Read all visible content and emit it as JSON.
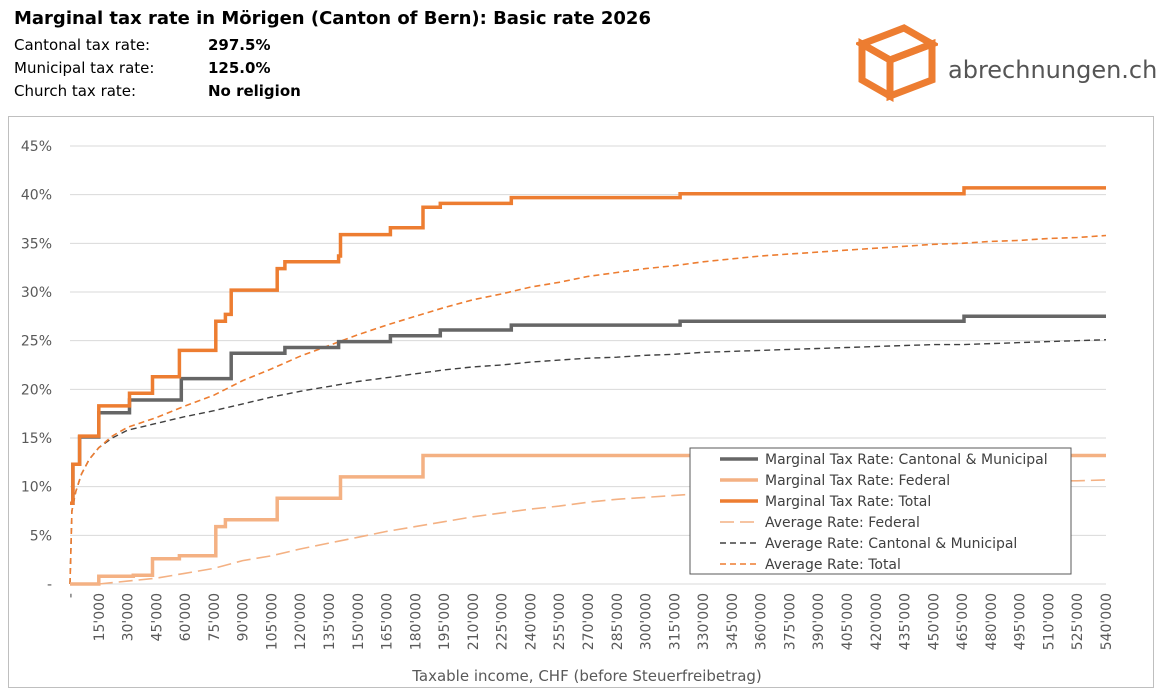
{
  "header": {
    "title": "Marginal tax rate in Mörigen (Canton of Bern): Basic rate 2026",
    "rows": [
      {
        "label": "Cantonal tax rate:",
        "value": "297.5%"
      },
      {
        "label": "Municipal tax rate:",
        "value": "125.0%"
      },
      {
        "label": "Church tax rate:",
        "value": "No religion"
      }
    ]
  },
  "logo": {
    "text": "abrechnungen.ch",
    "icon": "box-icon",
    "color": "#ed7d31"
  },
  "chart_data": {
    "type": "line",
    "xlabel": "Taxable income, CHF (before Steuerfreibetrag)",
    "ylabel": "",
    "xlim": [
      0,
      540000
    ],
    "ylim": [
      0,
      45
    ],
    "grid": true,
    "legend_position": "bottom-right",
    "y_ticks": [
      {
        "value": 0,
        "label": "-"
      },
      {
        "value": 5,
        "label": "5%"
      },
      {
        "value": 10,
        "label": "10%"
      },
      {
        "value": 15,
        "label": "15%"
      },
      {
        "value": 20,
        "label": "20%"
      },
      {
        "value": 25,
        "label": "25%"
      },
      {
        "value": 30,
        "label": "30%"
      },
      {
        "value": 35,
        "label": "35%"
      },
      {
        "value": 40,
        "label": "40%"
      },
      {
        "value": 45,
        "label": "45%"
      }
    ],
    "x_ticks": [
      "-",
      "15'000",
      "30'000",
      "45'000",
      "60'000",
      "75'000",
      "90'000",
      "105'000",
      "120'000",
      "135'000",
      "150'000",
      "165'000",
      "180'000",
      "195'000",
      "210'000",
      "225'000",
      "240'000",
      "255'000",
      "270'000",
      "285'000",
      "300'000",
      "315'000",
      "330'000",
      "345'000",
      "360'000",
      "375'000",
      "390'000",
      "405'000",
      "420'000",
      "435'000",
      "450'000",
      "465'000",
      "480'000",
      "495'000",
      "510'000",
      "525'000",
      "540'000"
    ],
    "series": [
      {
        "name": "Marginal Tax Rate: Cantonal & Municipal",
        "color": "#666666",
        "style": "solid",
        "width": 3.5,
        "points": [
          [
            0,
            8.3
          ],
          [
            1500,
            8.3
          ],
          [
            1500,
            12.3
          ],
          [
            5000,
            12.3
          ],
          [
            5000,
            15.1
          ],
          [
            15000,
            15.1
          ],
          [
            15000,
            17.6
          ],
          [
            31000,
            17.6
          ],
          [
            31000,
            18.9
          ],
          [
            58000,
            18.9
          ],
          [
            58000,
            21.1
          ],
          [
            84000,
            21.1
          ],
          [
            84000,
            23.7
          ],
          [
            112000,
            23.7
          ],
          [
            112000,
            24.3
          ],
          [
            140000,
            24.3
          ],
          [
            140000,
            24.9
          ],
          [
            167000,
            24.9
          ],
          [
            167000,
            25.5
          ],
          [
            193000,
            25.5
          ],
          [
            193000,
            26.1
          ],
          [
            230000,
            26.1
          ],
          [
            230000,
            26.6
          ],
          [
            318000,
            26.6
          ],
          [
            318000,
            27.0
          ],
          [
            466000,
            27.0
          ],
          [
            466000,
            27.5
          ],
          [
            540000,
            27.5
          ]
        ]
      },
      {
        "name": "Marginal Tax Rate: Federal",
        "color": "#f4b183",
        "style": "solid",
        "width": 3.5,
        "points": [
          [
            0,
            0
          ],
          [
            15000,
            0
          ],
          [
            15000,
            0.8
          ],
          [
            33000,
            0.8
          ],
          [
            33000,
            0.9
          ],
          [
            43000,
            0.9
          ],
          [
            43000,
            2.6
          ],
          [
            57000,
            2.6
          ],
          [
            57000,
            2.9
          ],
          [
            76000,
            2.9
          ],
          [
            76000,
            5.9
          ],
          [
            81000,
            5.9
          ],
          [
            81000,
            6.6
          ],
          [
            108000,
            6.6
          ],
          [
            108000,
            8.8
          ],
          [
            141000,
            8.8
          ],
          [
            141000,
            11.0
          ],
          [
            184000,
            11.0
          ],
          [
            184000,
            13.2
          ],
          [
            540000,
            13.2
          ]
        ]
      },
      {
        "name": "Marginal Tax Rate: Total",
        "color": "#ed7d31",
        "style": "solid",
        "width": 3.5,
        "points": [
          [
            0,
            8.3
          ],
          [
            1500,
            8.3
          ],
          [
            1500,
            12.3
          ],
          [
            5000,
            12.3
          ],
          [
            5000,
            15.2
          ],
          [
            15000,
            15.2
          ],
          [
            15000,
            18.3
          ],
          [
            31000,
            18.3
          ],
          [
            31000,
            19.6
          ],
          [
            43000,
            19.6
          ],
          [
            43000,
            21.3
          ],
          [
            57000,
            21.3
          ],
          [
            57000,
            24.0
          ],
          [
            76000,
            24.0
          ],
          [
            76000,
            27.0
          ],
          [
            81000,
            27.0
          ],
          [
            81000,
            27.7
          ],
          [
            84000,
            27.7
          ],
          [
            84000,
            30.2
          ],
          [
            108000,
            30.2
          ],
          [
            108000,
            32.4
          ],
          [
            112000,
            32.4
          ],
          [
            112000,
            33.1
          ],
          [
            140000,
            33.1
          ],
          [
            140000,
            33.7
          ],
          [
            141000,
            33.7
          ],
          [
            141000,
            35.9
          ],
          [
            167000,
            35.9
          ],
          [
            167000,
            36.6
          ],
          [
            184000,
            36.6
          ],
          [
            184000,
            38.7
          ],
          [
            193000,
            38.7
          ],
          [
            193000,
            39.1
          ],
          [
            230000,
            39.1
          ],
          [
            230000,
            39.7
          ],
          [
            318000,
            39.7
          ],
          [
            318000,
            40.1
          ],
          [
            466000,
            40.1
          ],
          [
            466000,
            40.7
          ],
          [
            540000,
            40.7
          ]
        ]
      },
      {
        "name": "Average Rate: Federal",
        "color": "#f4b183",
        "style": "longdash",
        "width": 1.6,
        "points": [
          [
            15000,
            0
          ],
          [
            30000,
            0.3
          ],
          [
            45000,
            0.6
          ],
          [
            60000,
            1.1
          ],
          [
            75000,
            1.6
          ],
          [
            90000,
            2.4
          ],
          [
            105000,
            2.9
          ],
          [
            120000,
            3.6
          ],
          [
            135000,
            4.2
          ],
          [
            150000,
            4.8
          ],
          [
            165000,
            5.4
          ],
          [
            180000,
            5.9
          ],
          [
            195000,
            6.4
          ],
          [
            210000,
            6.9
          ],
          [
            225000,
            7.3
          ],
          [
            240000,
            7.7
          ],
          [
            255000,
            8.0
          ],
          [
            270000,
            8.4
          ],
          [
            285000,
            8.7
          ],
          [
            300000,
            8.9
          ],
          [
            315000,
            9.1
          ],
          [
            330000,
            9.3
          ],
          [
            345000,
            9.5
          ],
          [
            360000,
            9.7
          ],
          [
            375000,
            9.8
          ],
          [
            390000,
            9.9
          ],
          [
            405000,
            10.0
          ],
          [
            420000,
            10.1
          ],
          [
            435000,
            10.2
          ],
          [
            450000,
            10.3
          ],
          [
            465000,
            10.4
          ],
          [
            480000,
            10.5
          ],
          [
            495000,
            10.5
          ],
          [
            510000,
            10.6
          ],
          [
            525000,
            10.6
          ],
          [
            540000,
            10.7
          ]
        ]
      },
      {
        "name": "Average Rate: Cantonal & Municipal",
        "color": "#404040",
        "style": "dash",
        "width": 1.4,
        "points": [
          [
            0,
            0
          ],
          [
            1000,
            7.5
          ],
          [
            3000,
            9.5
          ],
          [
            6000,
            11.3
          ],
          [
            10000,
            12.8
          ],
          [
            15000,
            14.0
          ],
          [
            22000,
            15.0
          ],
          [
            30000,
            15.8
          ],
          [
            45000,
            16.5
          ],
          [
            60000,
            17.2
          ],
          [
            75000,
            17.8
          ],
          [
            90000,
            18.5
          ],
          [
            105000,
            19.2
          ],
          [
            120000,
            19.8
          ],
          [
            135000,
            20.3
          ],
          [
            150000,
            20.8
          ],
          [
            165000,
            21.2
          ],
          [
            180000,
            21.6
          ],
          [
            195000,
            22.0
          ],
          [
            210000,
            22.3
          ],
          [
            225000,
            22.5
          ],
          [
            240000,
            22.8
          ],
          [
            255000,
            23.0
          ],
          [
            270000,
            23.2
          ],
          [
            285000,
            23.3
          ],
          [
            300000,
            23.5
          ],
          [
            315000,
            23.6
          ],
          [
            330000,
            23.8
          ],
          [
            345000,
            23.9
          ],
          [
            360000,
            24.0
          ],
          [
            375000,
            24.1
          ],
          [
            390000,
            24.2
          ],
          [
            405000,
            24.3
          ],
          [
            420000,
            24.4
          ],
          [
            435000,
            24.5
          ],
          [
            450000,
            24.6
          ],
          [
            465000,
            24.6
          ],
          [
            480000,
            24.7
          ],
          [
            495000,
            24.8
          ],
          [
            510000,
            24.9
          ],
          [
            525000,
            25.0
          ],
          [
            540000,
            25.1
          ]
        ]
      },
      {
        "name": "Average Rate: Total",
        "color": "#ed7d31",
        "style": "dash",
        "width": 1.6,
        "points": [
          [
            0,
            0
          ],
          [
            1000,
            7.5
          ],
          [
            3000,
            9.5
          ],
          [
            6000,
            11.3
          ],
          [
            10000,
            12.8
          ],
          [
            15000,
            14.0
          ],
          [
            22000,
            15.2
          ],
          [
            30000,
            16.1
          ],
          [
            45000,
            17.1
          ],
          [
            60000,
            18.3
          ],
          [
            75000,
            19.4
          ],
          [
            90000,
            20.9
          ],
          [
            105000,
            22.1
          ],
          [
            120000,
            23.4
          ],
          [
            135000,
            24.5
          ],
          [
            150000,
            25.6
          ],
          [
            165000,
            26.6
          ],
          [
            180000,
            27.5
          ],
          [
            195000,
            28.4
          ],
          [
            210000,
            29.2
          ],
          [
            225000,
            29.8
          ],
          [
            240000,
            30.5
          ],
          [
            255000,
            31.0
          ],
          [
            270000,
            31.6
          ],
          [
            285000,
            32.0
          ],
          [
            300000,
            32.4
          ],
          [
            315000,
            32.7
          ],
          [
            330000,
            33.1
          ],
          [
            345000,
            33.4
          ],
          [
            360000,
            33.7
          ],
          [
            375000,
            33.9
          ],
          [
            390000,
            34.1
          ],
          [
            405000,
            34.3
          ],
          [
            420000,
            34.5
          ],
          [
            435000,
            34.7
          ],
          [
            450000,
            34.9
          ],
          [
            465000,
            35.0
          ],
          [
            480000,
            35.2
          ],
          [
            495000,
            35.3
          ],
          [
            510000,
            35.5
          ],
          [
            525000,
            35.6
          ],
          [
            540000,
            35.8
          ]
        ]
      }
    ]
  }
}
